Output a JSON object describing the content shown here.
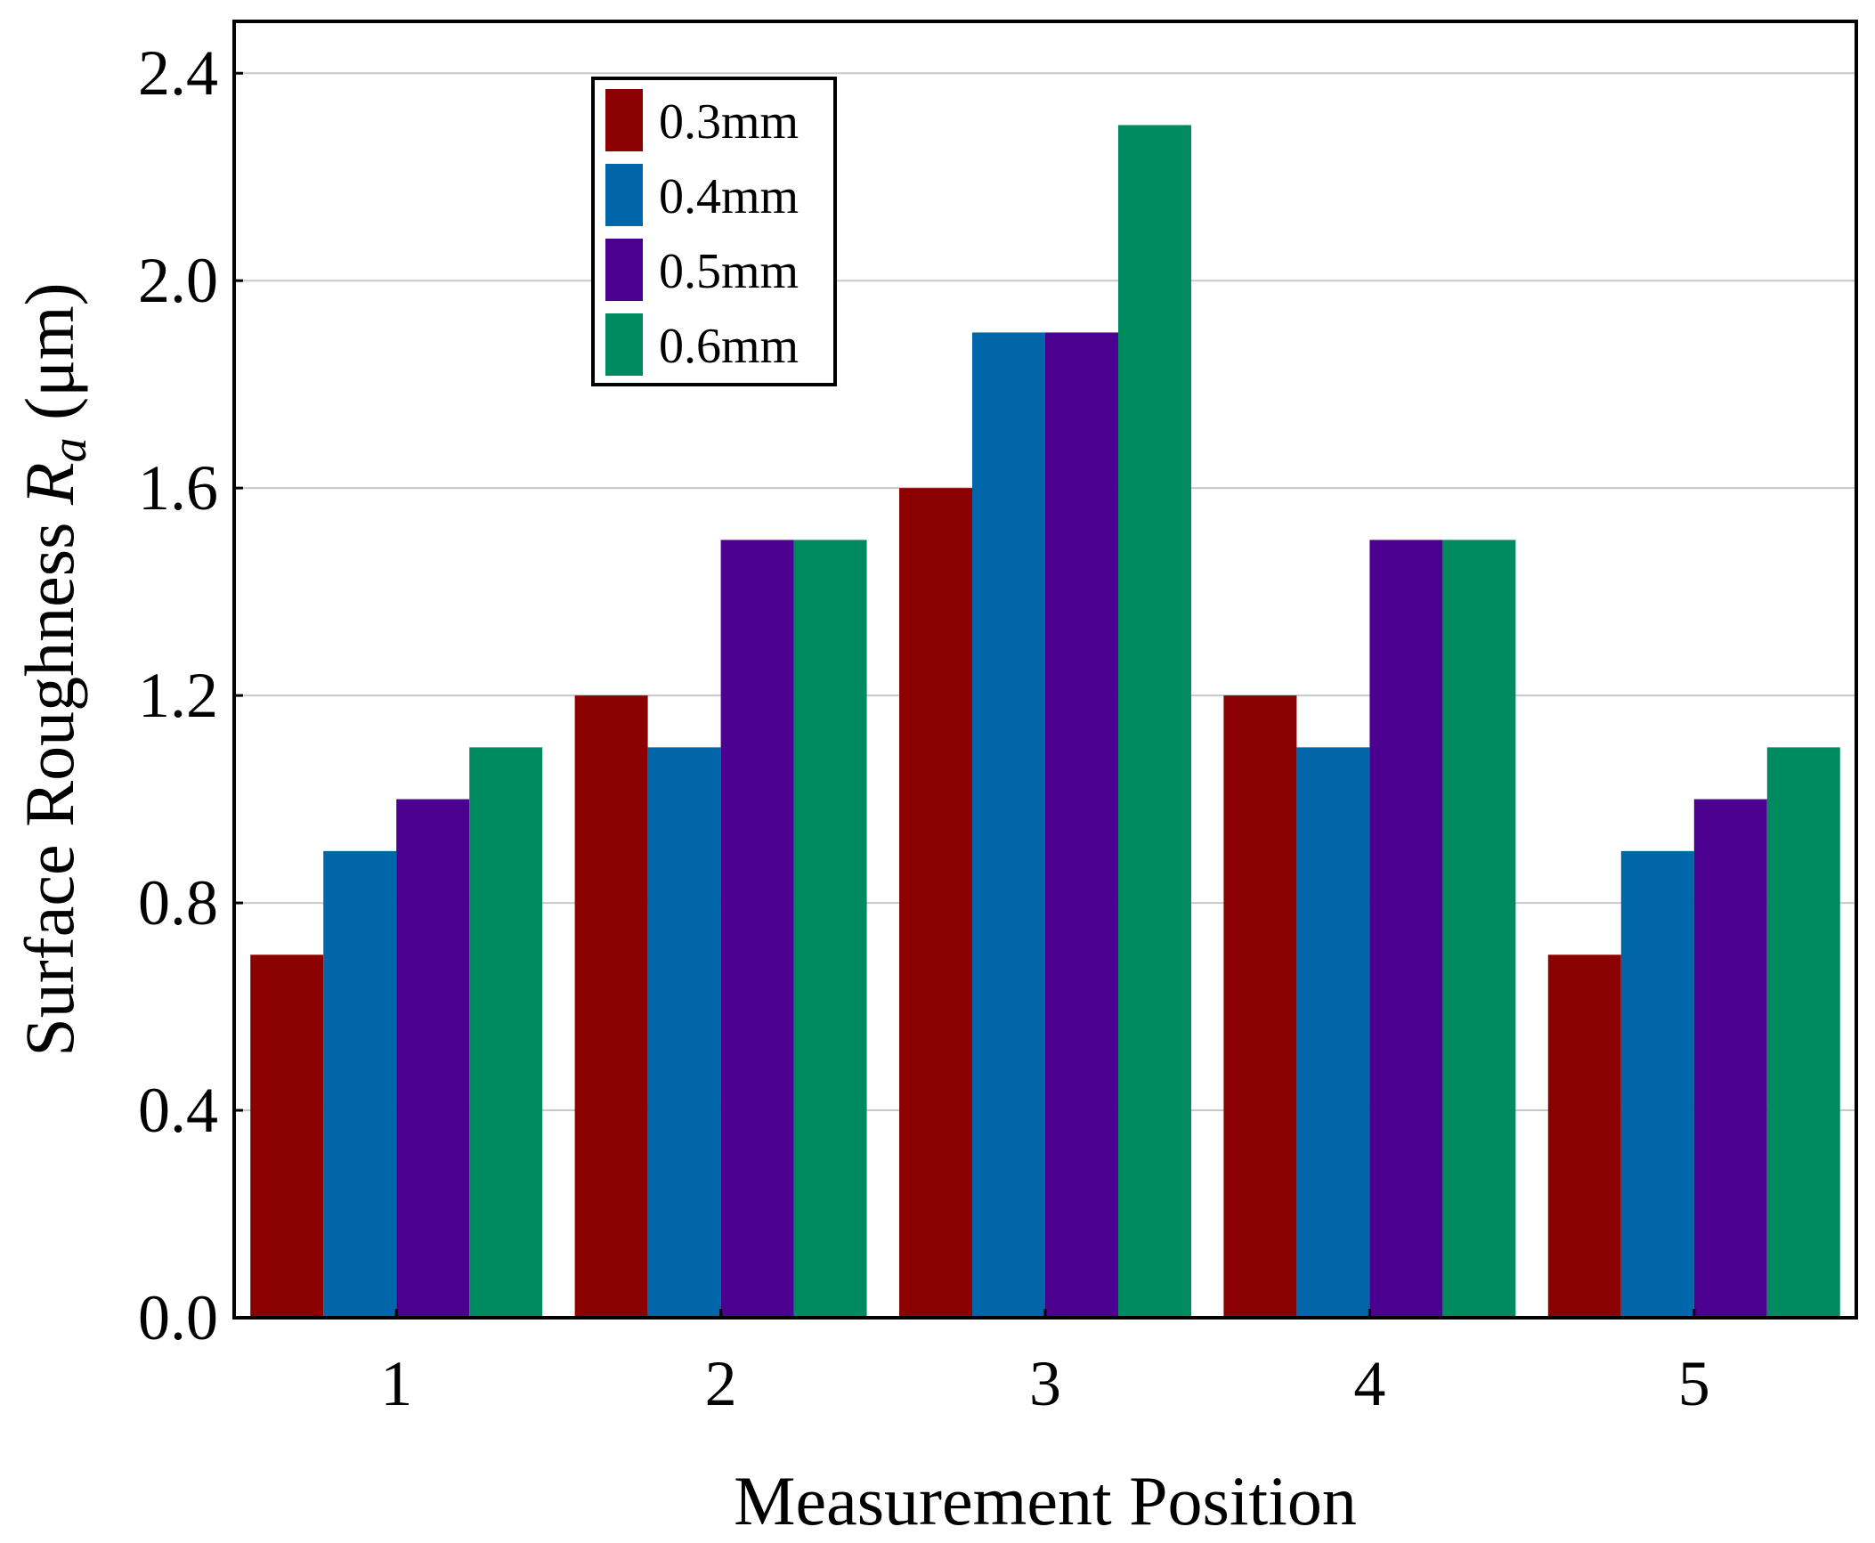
{
  "chart_data": {
    "type": "bar",
    "title": "",
    "xlabel": "Measurement Position",
    "ylabel_main": "Surface Roughness ",
    "ylabel_var": "R",
    "ylabel_sub": "a",
    "ylabel_unit": " (μm)",
    "categories": [
      "1",
      "2",
      "3",
      "4",
      "5"
    ],
    "ylim": [
      0,
      2.5
    ],
    "yticks": [
      "0.0",
      "0.4",
      "0.8",
      "1.2",
      "1.6",
      "2.0",
      "2.4"
    ],
    "ytick_values": [
      0,
      0.4,
      0.8,
      1.2,
      1.6,
      2.0,
      2.4
    ],
    "grid": true,
    "legend_position": "top-left",
    "series": [
      {
        "name": "0.3mm",
        "color": "#8B0000",
        "values": [
          0.7,
          1.2,
          1.6,
          1.2,
          0.7
        ]
      },
      {
        "name": "0.4mm",
        "color": "#0066AA",
        "values": [
          0.9,
          1.1,
          1.9,
          1.1,
          0.9
        ]
      },
      {
        "name": "0.5mm",
        "color": "#4B0090",
        "values": [
          1.0,
          1.5,
          1.9,
          1.5,
          1.0
        ]
      },
      {
        "name": "0.6mm",
        "color": "#008A60",
        "values": [
          1.1,
          1.5,
          2.3,
          1.5,
          1.1
        ]
      }
    ]
  }
}
